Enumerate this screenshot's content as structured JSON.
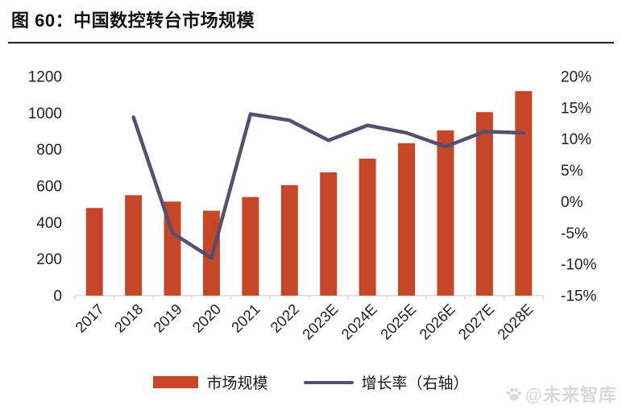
{
  "header": {
    "title": "图 60：中国数控转台市场规模"
  },
  "chart_data": {
    "type": "bar+line",
    "title": "图 60：中国数控转台市场规模",
    "categories": [
      "2017",
      "2018",
      "2019",
      "2020",
      "2021",
      "2022",
      "2023E",
      "2024E",
      "2025E",
      "2026E",
      "2027E",
      "2028E"
    ],
    "series": [
      {
        "name": "市场规模",
        "type": "bar",
        "axis": "left",
        "color": "#C6462A",
        "values": [
          480,
          550,
          515,
          465,
          540,
          605,
          675,
          750,
          835,
          905,
          1005,
          1120
        ]
      },
      {
        "name": "增长率（右轴）",
        "type": "line",
        "axis": "right",
        "color": "#55506E",
        "values": [
          null,
          13.5,
          -5,
          -9,
          14,
          13,
          9.8,
          12.2,
          11,
          8.8,
          11.2,
          11
        ]
      }
    ],
    "left_axis": {
      "min": 0,
      "max": 1200,
      "step": 200,
      "tick_labels": [
        "0",
        "200",
        "400",
        "600",
        "800",
        "1000",
        "1200"
      ]
    },
    "right_axis": {
      "min": -15,
      "max": 20,
      "step": 5,
      "unit": "%",
      "tick_labels": [
        "-15%",
        "-10%",
        "-5%",
        "0%",
        "5%",
        "10%",
        "15%",
        "20%"
      ]
    },
    "grid": false,
    "legend_position": "bottom",
    "axis_line_color": "#D9D9D9"
  },
  "legend": {
    "items": [
      {
        "label": "市场规模",
        "swatch": "bar",
        "color": "#C6462A"
      },
      {
        "label": "增长率（右轴）",
        "swatch": "line",
        "color": "#55506E"
      }
    ]
  },
  "watermark": {
    "icon": "paw-icon",
    "text": "@未来智库",
    "color": "#d9d9d9"
  }
}
